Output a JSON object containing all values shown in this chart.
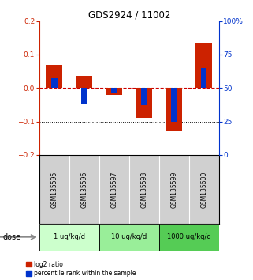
{
  "title": "GDS2924 / 11002",
  "samples": [
    "GSM135595",
    "GSM135596",
    "GSM135597",
    "GSM135598",
    "GSM135599",
    "GSM135600"
  ],
  "red_values": [
    0.07,
    0.035,
    -0.02,
    -0.09,
    -0.13,
    0.135
  ],
  "blue_values_pct": [
    57,
    38,
    46,
    37,
    25,
    65
  ],
  "ylim_left": [
    -0.2,
    0.2
  ],
  "ylim_right": [
    0,
    100
  ],
  "yticks_left": [
    -0.2,
    -0.1,
    0.0,
    0.1,
    0.2
  ],
  "yticks_right": [
    0,
    25,
    50,
    75,
    100
  ],
  "ytick_labels_right": [
    "0",
    "25",
    "50",
    "75",
    "100%"
  ],
  "hlines": [
    0.1,
    -0.1
  ],
  "red_color": "#cc2200",
  "blue_color": "#0033cc",
  "dose_groups": [
    {
      "label": "1 ug/kg/d",
      "samples": [
        0,
        1
      ],
      "color": "#ccffcc"
    },
    {
      "label": "10 ug/kg/d",
      "samples": [
        2,
        3
      ],
      "color": "#99ee99"
    },
    {
      "label": "1000 ug/kg/d",
      "samples": [
        4,
        5
      ],
      "color": "#55cc55"
    }
  ],
  "dose_label": "dose",
  "legend_red": "log2 ratio",
  "legend_blue": "percentile rank within the sample",
  "red_bar_width": 0.55,
  "blue_bar_width": 0.2,
  "zero_line_color": "#cc0000",
  "dotted_line_color": "#000000"
}
